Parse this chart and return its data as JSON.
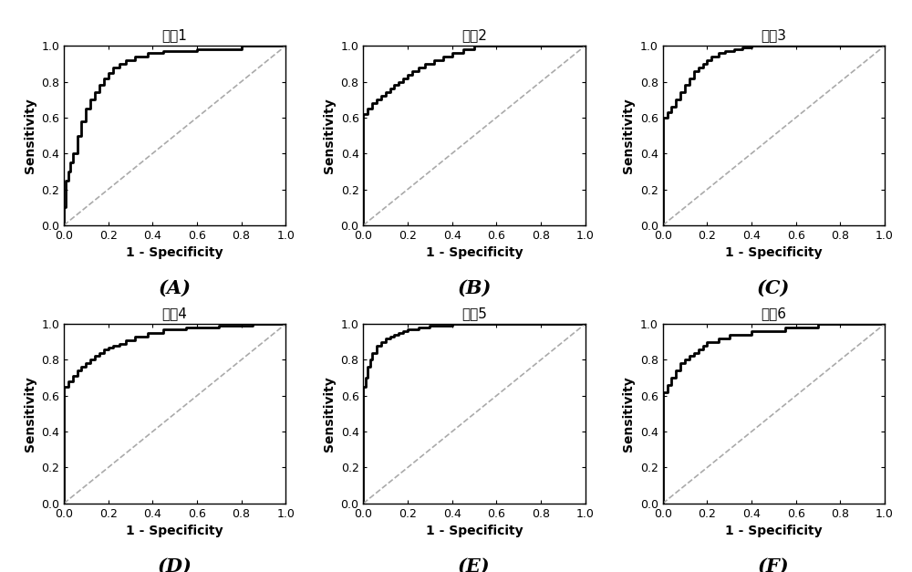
{
  "titles": [
    "组區1",
    "组區2",
    "组區3",
    "组區4",
    "组區5",
    "组區6"
  ],
  "labels": [
    "(A)",
    "(B)",
    "(C)",
    "(D)",
    "(E)",
    "(F)"
  ],
  "roc_curves": [
    {
      "fpr": [
        0.0,
        0.0,
        0.01,
        0.02,
        0.03,
        0.04,
        0.06,
        0.08,
        0.1,
        0.12,
        0.14,
        0.16,
        0.18,
        0.2,
        0.22,
        0.25,
        0.28,
        0.32,
        0.38,
        0.45,
        0.6,
        0.8,
        1.0
      ],
      "tpr": [
        0.0,
        0.1,
        0.25,
        0.3,
        0.35,
        0.4,
        0.5,
        0.58,
        0.65,
        0.7,
        0.74,
        0.78,
        0.82,
        0.85,
        0.88,
        0.9,
        0.92,
        0.94,
        0.96,
        0.97,
        0.98,
        1.0,
        1.0
      ]
    },
    {
      "fpr": [
        0.0,
        0.0,
        0.02,
        0.04,
        0.06,
        0.08,
        0.1,
        0.12,
        0.14,
        0.16,
        0.18,
        0.2,
        0.22,
        0.25,
        0.28,
        0.32,
        0.36,
        0.4,
        0.45,
        0.5,
        0.7,
        1.0
      ],
      "tpr": [
        0.0,
        0.62,
        0.65,
        0.68,
        0.7,
        0.72,
        0.74,
        0.76,
        0.78,
        0.8,
        0.82,
        0.84,
        0.86,
        0.88,
        0.9,
        0.92,
        0.94,
        0.96,
        0.98,
        1.0,
        1.0,
        1.0
      ]
    },
    {
      "fpr": [
        0.0,
        0.0,
        0.02,
        0.04,
        0.06,
        0.08,
        0.1,
        0.12,
        0.14,
        0.16,
        0.18,
        0.2,
        0.22,
        0.25,
        0.28,
        0.32,
        0.36,
        0.4,
        0.6,
        1.0
      ],
      "tpr": [
        0.0,
        0.6,
        0.63,
        0.66,
        0.7,
        0.74,
        0.78,
        0.82,
        0.86,
        0.88,
        0.9,
        0.92,
        0.94,
        0.96,
        0.97,
        0.98,
        0.99,
        1.0,
        1.0,
        1.0
      ]
    },
    {
      "fpr": [
        0.0,
        0.0,
        0.02,
        0.04,
        0.06,
        0.08,
        0.1,
        0.12,
        0.14,
        0.16,
        0.18,
        0.2,
        0.22,
        0.25,
        0.28,
        0.32,
        0.38,
        0.45,
        0.55,
        0.7,
        0.85,
        1.0
      ],
      "tpr": [
        0.0,
        0.65,
        0.68,
        0.71,
        0.74,
        0.76,
        0.78,
        0.8,
        0.82,
        0.84,
        0.86,
        0.87,
        0.88,
        0.89,
        0.91,
        0.93,
        0.95,
        0.97,
        0.98,
        0.99,
        1.0,
        1.0
      ]
    },
    {
      "fpr": [
        0.0,
        0.0,
        0.01,
        0.02,
        0.03,
        0.04,
        0.06,
        0.08,
        0.1,
        0.12,
        0.14,
        0.16,
        0.18,
        0.2,
        0.25,
        0.3,
        0.4,
        0.55,
        0.7,
        1.0
      ],
      "tpr": [
        0.0,
        0.65,
        0.7,
        0.76,
        0.8,
        0.84,
        0.88,
        0.9,
        0.92,
        0.93,
        0.94,
        0.95,
        0.96,
        0.97,
        0.98,
        0.99,
        1.0,
        1.0,
        1.0,
        1.0
      ]
    },
    {
      "fpr": [
        0.0,
        0.0,
        0.02,
        0.04,
        0.06,
        0.08,
        0.1,
        0.12,
        0.14,
        0.16,
        0.18,
        0.2,
        0.25,
        0.3,
        0.4,
        0.55,
        0.7,
        1.0
      ],
      "tpr": [
        0.0,
        0.62,
        0.66,
        0.7,
        0.74,
        0.78,
        0.8,
        0.82,
        0.84,
        0.86,
        0.88,
        0.9,
        0.92,
        0.94,
        0.96,
        0.98,
        1.0,
        1.0
      ]
    }
  ],
  "line_color": "#000000",
  "line_width": 2.0,
  "diag_color": "#aaaaaa",
  "diag_style": "--",
  "diag_linewidth": 1.2,
  "xlabel": "1 - Specificity",
  "ylabel": "Sensitivity",
  "xticks": [
    0.0,
    0.2,
    0.4,
    0.6,
    0.8,
    1.0
  ],
  "yticks": [
    0.0,
    0.2,
    0.4,
    0.6,
    0.8,
    1.0
  ],
  "xticklabels": [
    "0.0",
    "0.2",
    "0.4",
    "0.6",
    "0.8",
    "1.0"
  ],
  "yticklabels": [
    "0.0",
    "0.2",
    "0.4",
    "0.6",
    "0.8",
    "1.0"
  ],
  "xlim": [
    0.0,
    1.0
  ],
  "ylim": [
    0.0,
    1.0
  ],
  "title_fontsize": 11,
  "label_fontsize": 10,
  "tick_fontsize": 9,
  "sublabel_fontsize": 15,
  "background_color": "#ffffff",
  "figsize": [
    10.0,
    6.27
  ],
  "dpi": 100
}
